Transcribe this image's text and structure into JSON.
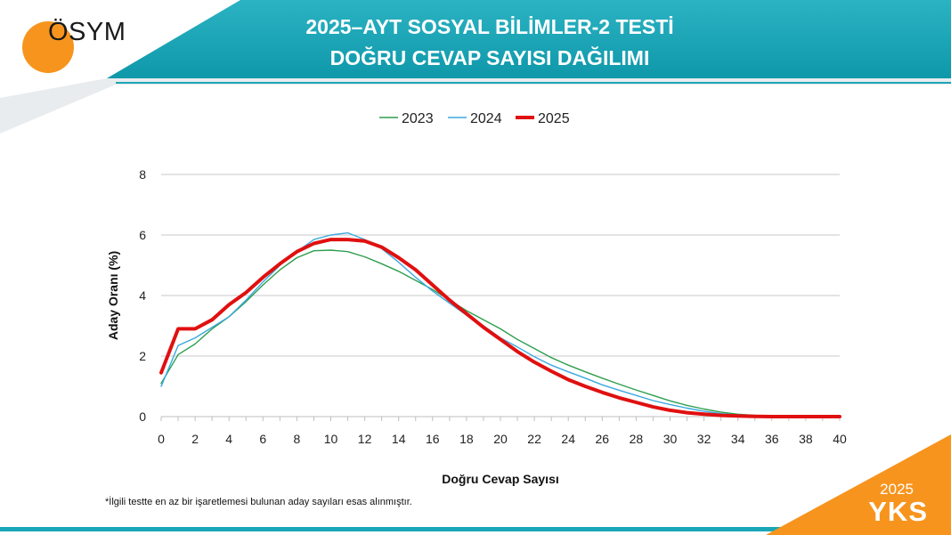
{
  "header": {
    "logo_text": "ÖSYM",
    "title_line1": "2025–AYT SOSYAL BİLİMLER-2 TESTİ",
    "title_line2": "DOĞRU CEVAP SAYISI DAĞILIMI"
  },
  "footnote": "*İlgili testte en az bir işaretlemesi bulunan aday sayıları esas alınmıştır.",
  "badge": {
    "year": "2025",
    "label": "YKS"
  },
  "colors": {
    "header_teal": "#1aa6b7",
    "orange": "#f7941d",
    "series_2023": "#2e9e4f",
    "series_2024": "#3aa8e0",
    "series_2025": "#e01010"
  },
  "chart_data": {
    "type": "line",
    "xlabel": "Doğru Cevap Sayısı",
    "ylabel": "Aday Oranı (%)",
    "xlim": [
      0,
      40
    ],
    "ylim": [
      0,
      8
    ],
    "xticks": [
      "0",
      "2",
      "4",
      "6",
      "8",
      "10",
      "12",
      "14",
      "16",
      "18",
      "20",
      "22",
      "24",
      "26",
      "28",
      "30",
      "32",
      "34",
      "36",
      "38",
      "40"
    ],
    "yticks": [
      "0",
      "2",
      "4",
      "6",
      "8"
    ],
    "grid": "horizontal",
    "legend_position": "top-center",
    "x": [
      0,
      1,
      2,
      3,
      4,
      5,
      6,
      7,
      8,
      9,
      10,
      11,
      12,
      13,
      14,
      15,
      16,
      17,
      18,
      19,
      20,
      21,
      22,
      23,
      24,
      25,
      26,
      27,
      28,
      29,
      30,
      31,
      32,
      33,
      34,
      35,
      36,
      37,
      38,
      39,
      40
    ],
    "series": [
      {
        "name": "2023",
        "values": [
          1.1,
          2.05,
          2.4,
          2.9,
          3.3,
          3.8,
          4.35,
          4.85,
          5.25,
          5.48,
          5.5,
          5.45,
          5.28,
          5.05,
          4.8,
          4.5,
          4.2,
          3.85,
          3.5,
          3.2,
          2.9,
          2.55,
          2.25,
          1.95,
          1.7,
          1.48,
          1.27,
          1.07,
          0.88,
          0.7,
          0.52,
          0.37,
          0.25,
          0.15,
          0.08,
          0.04,
          0.02,
          0.01,
          0.0,
          0.0,
          0.0
        ]
      },
      {
        "name": "2024",
        "values": [
          1.0,
          2.35,
          2.6,
          2.95,
          3.3,
          3.85,
          4.45,
          5.0,
          5.45,
          5.85,
          6.0,
          6.07,
          5.85,
          5.55,
          5.1,
          4.6,
          4.15,
          3.75,
          3.35,
          3.0,
          2.6,
          2.3,
          1.98,
          1.7,
          1.48,
          1.27,
          1.05,
          0.87,
          0.7,
          0.53,
          0.4,
          0.28,
          0.18,
          0.1,
          0.05,
          0.02,
          0.01,
          0.0,
          0.0,
          0.0,
          0.0
        ]
      },
      {
        "name": "2025",
        "values": [
          1.45,
          2.9,
          2.9,
          3.2,
          3.7,
          4.1,
          4.6,
          5.05,
          5.45,
          5.72,
          5.85,
          5.85,
          5.8,
          5.6,
          5.25,
          4.85,
          4.35,
          3.85,
          3.4,
          2.95,
          2.55,
          2.15,
          1.8,
          1.5,
          1.22,
          1.0,
          0.8,
          0.62,
          0.47,
          0.32,
          0.21,
          0.13,
          0.08,
          0.04,
          0.02,
          0.01,
          0.0,
          0.0,
          0.0,
          0.0,
          0.0
        ]
      }
    ]
  }
}
